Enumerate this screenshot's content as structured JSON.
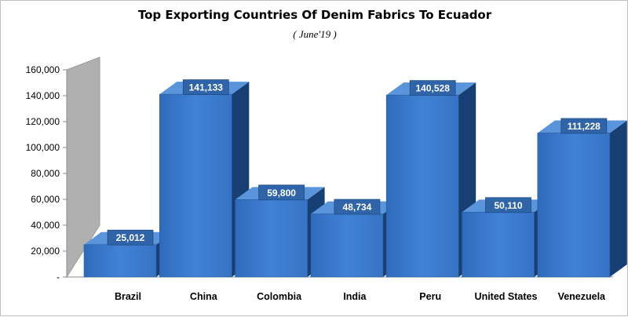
{
  "chart_data": {
    "type": "bar",
    "title": "Top Exporting Countries Of Denim Fabrics To Ecuador",
    "subtitle": "( June'19 )",
    "categories": [
      "Brazil",
      "China",
      "Colombia",
      "India",
      "Peru",
      "United States",
      "Venezuela"
    ],
    "values": [
      25012,
      141133,
      59800,
      48734,
      140528,
      50110,
      111228
    ],
    "data_labels": [
      "25,012",
      "141,133",
      "59,800",
      "48,734",
      "140,528",
      "50,110",
      "111,228"
    ],
    "ylim": [
      0,
      160000
    ],
    "yticks": [
      0,
      20000,
      40000,
      60000,
      80000,
      100000,
      120000,
      140000,
      160000
    ],
    "ytick_labels": [
      "-",
      "20,000",
      "40,000",
      "60,000",
      "80,000",
      "100,000",
      "120,000",
      "140,000",
      "160,000"
    ],
    "xlabel": "",
    "ylabel": "",
    "grid": false,
    "legend": "none",
    "style": "3d-column",
    "colors": {
      "bar_front": "#3a78c9",
      "bar_side": "#173f73",
      "bar_top": "#5a95dc",
      "back_wall": "#b0b0b0",
      "label_box": "#2f65a8"
    }
  }
}
